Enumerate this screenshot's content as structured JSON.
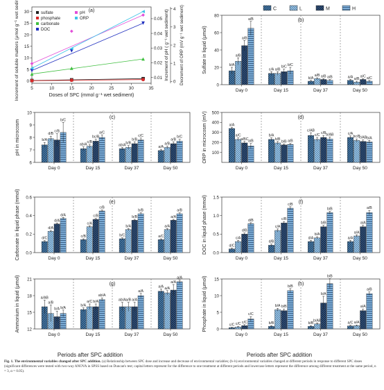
{
  "colors": {
    "C": "#4a7fae",
    "L": "#86b8dc",
    "M": "#1f3e6b",
    "H": "#5b93c7",
    "axis": "#333333",
    "label": "#222222"
  },
  "legend": {
    "labels": [
      "C",
      "L",
      "M",
      "H"
    ]
  },
  "shared": {
    "xticks": [
      "Day 0",
      "Day 15",
      "Day 37",
      "Day 50"
    ],
    "xlabel": "Periods after SPC addition"
  },
  "caption": {
    "lead": "Fig. 1.",
    "title": "The environmental variables changed after SPC addition.",
    "body": "(a) Relationship between SPC dose and increase and decrease of environmental variables; (b–h) environmental variables changed at different periods in response to different SPC doses (significant differences were tested with two-way ANOVA in SPSS based on Duncan's test; capital letters represent for the difference to one treatment at different periods and lowercase letters represent the difference among different treatment at the same period, n = 3, α = 0.05)."
  },
  "chart_data": [
    {
      "type": "scatter",
      "panel": "(a)",
      "xlabel": "Doses of SPC (mmol g⁻¹ wet sediment)",
      "ylabel": "Increment of soluble matters (μmol g⁻¹ wet sediment)",
      "ylabel_right1": "Increment of pH ( g⁻¹ wet sediment)",
      "ylabel_right2": "Decrement of ORP (mV g⁻¹ wet sediment)",
      "xticks": [
        "5",
        "10",
        "15",
        "20",
        "25",
        "30",
        "35"
      ],
      "yticks": [
        "0",
        "5",
        "10",
        "15",
        "20",
        "25",
        "30"
      ],
      "yticks_right1": [
        "0.01",
        "0.02",
        "0.03",
        "0.04",
        "0.05"
      ],
      "yticks_right2": [
        "0",
        "1",
        "2",
        "3",
        "4"
      ],
      "xlim": [
        5,
        35
      ],
      "ylim": [
        -1,
        32
      ],
      "series": [
        {
          "name": "sulfate",
          "color": "#222222",
          "marker": "square",
          "x": [
            5,
            15,
            33
          ],
          "y": [
            0.2,
            0.5,
            1.0
          ]
        },
        {
          "name": "phosphate",
          "color": "#d92a2a",
          "marker": "circle",
          "x": [
            5,
            15,
            33
          ],
          "y": [
            0.1,
            0.3,
            0.6
          ]
        },
        {
          "name": "carbonate",
          "color": "#3fbf3f",
          "marker": "triangle-up",
          "x": [
            5,
            15,
            33
          ],
          "y": [
            3.0,
            5.5,
            9.5
          ]
        },
        {
          "name": "DOC",
          "color": "#1f2fbf",
          "marker": "triangle-down",
          "x": [
            5,
            15,
            33
          ],
          "y": [
            4.5,
            13.0,
            25.0
          ]
        },
        {
          "name": "pH",
          "color": "#e24fd8",
          "marker": "diamond",
          "x": [
            5,
            15,
            33
          ],
          "y": [
            7.5,
            21.5,
            28.5
          ]
        },
        {
          "name": "ORP",
          "color": "#3ec3e8",
          "marker": "triangle-left",
          "x": [
            5,
            15,
            33
          ],
          "y": [
            5.5,
            14.0,
            30.0
          ]
        }
      ]
    },
    {
      "type": "bar",
      "panel": "(b)",
      "ylabel": "Sulfate in liquid (μmol)",
      "ylim": [
        0,
        80
      ],
      "yticks": [
        "0",
        "20",
        "40",
        "60",
        "80"
      ],
      "categories": [
        "Day 0",
        "Day 15",
        "Day 37",
        "Day 50"
      ],
      "series": [
        {
          "name": "C",
          "values": [
            16,
            13,
            4,
            5
          ]
        },
        {
          "name": "L",
          "values": [
            27,
            13,
            7,
            3
          ]
        },
        {
          "name": "M",
          "values": [
            45,
            15,
            6,
            6
          ]
        },
        {
          "name": "H",
          "values": [
            65,
            16,
            5,
            4
          ]
        }
      ],
      "errors": [
        [
          4,
          2,
          1,
          1
        ],
        [
          4,
          2,
          1,
          1
        ],
        [
          6,
          3,
          1,
          1
        ],
        [
          8,
          4,
          1,
          1
        ]
      ],
      "labels": [
        [
          "b/A",
          "c/A",
          "b/A",
          "a/A"
        ],
        [
          "a/B",
          "a/B",
          "a/B",
          "a/B"
        ],
        [
          "a/B",
          "b/C",
          "a/B",
          "a/C"
        ],
        [
          "a/B",
          "b/C",
          "a/B",
          "a/C"
        ]
      ]
    },
    {
      "type": "bar",
      "panel": "(c)",
      "ylabel": "pH in microcosm",
      "ylim": [
        6,
        10
      ],
      "yticks": [
        "6",
        "7",
        "8",
        "9",
        "10"
      ],
      "categories": [
        "Day 0",
        "Day 15",
        "Day 37",
        "Day 50"
      ],
      "series": [
        {
          "name": "C",
          "values": [
            7.4,
            7.1,
            7.1,
            6.95
          ]
        },
        {
          "name": "L",
          "values": [
            7.9,
            7.3,
            7.2,
            7.2
          ]
        },
        {
          "name": "M",
          "values": [
            7.8,
            7.7,
            7.5,
            7.5
          ]
        },
        {
          "name": "H",
          "values": [
            8.4,
            8.0,
            7.8,
            7.7
          ]
        }
      ],
      "errors": [
        [
          0.2,
          0.15,
          0.1,
          0.1
        ],
        [
          0.2,
          0.15,
          0.15,
          0.1
        ],
        [
          0.5,
          0.15,
          0.15,
          0.15
        ],
        [
          0.8,
          0.2,
          0.15,
          0.15
        ]
      ],
      "labels": [
        [
          "b/A",
          "ab/A",
          "ab/A",
          "a/A"
        ],
        [
          "d/B",
          "c/B",
          "b/B",
          "a/B"
        ],
        [
          "c/B",
          "bc/B",
          "b/B",
          "a/B"
        ],
        [
          "b/C",
          "a/C",
          "c/C",
          "b/C"
        ]
      ]
    },
    {
      "type": "bar",
      "panel": "(d)",
      "ylabel": "ORP in microcosm (mV)",
      "ylim": [
        0,
        500
      ],
      "yticks": [
        "100",
        "200",
        "300",
        "400",
        "500"
      ],
      "categories": [
        "Day 0",
        "Day 15",
        "Day 37",
        "Day 50"
      ],
      "series": [
        {
          "name": "C",
          "values": [
            340,
            230,
            270,
            250
          ]
        },
        {
          "name": "L",
          "values": [
            230,
            195,
            230,
            220
          ]
        },
        {
          "name": "M",
          "values": [
            195,
            175,
            250,
            210
          ]
        },
        {
          "name": "H",
          "values": [
            165,
            180,
            235,
            205
          ]
        }
      ],
      "errors": [
        [
          10,
          15,
          25,
          15
        ],
        [
          15,
          15,
          20,
          15
        ],
        [
          15,
          10,
          20,
          15
        ],
        [
          25,
          10,
          20,
          15
        ]
      ],
      "labels": [
        [
          "a/A",
          "b/A",
          "c/AB",
          "c/A"
        ],
        [
          "a/C",
          "b/B",
          "c/C",
          "bc/B"
        ],
        [
          "a/BC",
          "b/B",
          "c/B",
          "c/AB"
        ],
        [
          "a/B",
          "a/B",
          "b/AB",
          "b/A"
        ]
      ]
    },
    {
      "type": "bar",
      "panel": "(e)",
      "ylabel": "Carbonate in liquid phase (mmol)",
      "ylim": [
        0,
        0.6
      ],
      "yticks": [
        "0.0",
        "0.2",
        "0.4",
        "0.6"
      ],
      "categories": [
        "Day 0",
        "Day 15",
        "Day 37",
        "Day 50"
      ],
      "series": [
        {
          "name": "C",
          "values": [
            0.12,
            0.14,
            0.15,
            0.14
          ]
        },
        {
          "name": "L",
          "values": [
            0.23,
            0.28,
            0.25,
            0.25
          ]
        },
        {
          "name": "M",
          "values": [
            0.31,
            0.36,
            0.35,
            0.35
          ]
        },
        {
          "name": "H",
          "values": [
            0.37,
            0.45,
            0.42,
            0.42
          ]
        }
      ],
      "errors": [
        [
          0.01,
          0.01,
          0.01,
          0.01
        ],
        [
          0.01,
          0.01,
          0.01,
          0.01
        ],
        [
          0.01,
          0.01,
          0.01,
          0.01
        ],
        [
          0.01,
          0.01,
          0.01,
          0.01
        ]
      ],
      "labels": [
        [
          "d/C",
          "c/B",
          "b/C",
          "a/C"
        ],
        [
          "d/A",
          "c/A",
          "b/A",
          "a/A"
        ],
        [
          "d/A",
          "c/B",
          "b/B",
          "a/A"
        ],
        [
          "d/A",
          "c/B",
          "b/B",
          "a/B"
        ]
      ]
    },
    {
      "type": "bar",
      "panel": "(f)",
      "ylabel": "DOC in liquid phase (mmol)",
      "ylim": [
        0,
        1.5
      ],
      "yticks": [
        "0.0",
        "0.5",
        "1.0",
        "1.5"
      ],
      "categories": [
        "Day 0",
        "Day 15",
        "Day 37",
        "Day 50"
      ],
      "series": [
        {
          "name": "C",
          "values": [
            0.1,
            0.2,
            0.3,
            0.3
          ]
        },
        {
          "name": "L",
          "values": [
            0.3,
            0.6,
            0.4,
            0.45
          ]
        },
        {
          "name": "M",
          "values": [
            0.5,
            0.8,
            0.7,
            0.7
          ]
        },
        {
          "name": "H",
          "values": [
            0.78,
            1.2,
            1.08,
            1.08
          ]
        }
      ],
      "errors": [
        [
          0.02,
          0.03,
          0.03,
          0.03
        ],
        [
          0.03,
          0.04,
          0.03,
          0.03
        ],
        [
          0.03,
          0.04,
          0.04,
          0.04
        ],
        [
          0.03,
          0.04,
          0.04,
          0.06
        ]
      ],
      "labels": [
        [
          "d/C",
          "d/B",
          "d/A",
          "a/A"
        ],
        [
          "c/A",
          "c/A",
          "b/A",
          "a/A"
        ],
        [
          "d/B",
          "c/B",
          "b/B",
          "a/A"
        ],
        [
          "d/B",
          "c/B",
          "b/B",
          "a/B"
        ]
      ]
    },
    {
      "type": "bar",
      "panel": "(g)",
      "ylabel": "Ammonium in liquid (μmol)",
      "ylim": [
        12,
        21
      ],
      "yticks": [
        "12",
        "15",
        "18",
        "21"
      ],
      "categories": [
        "Day 0",
        "Day 15",
        "Day 37",
        "Day 50"
      ],
      "series": [
        {
          "name": "C",
          "values": [
            16,
            15.5,
            16,
            18.8
          ]
        },
        {
          "name": "L",
          "values": [
            14.8,
            16.0,
            16.0,
            18.5
          ]
        },
        {
          "name": "M",
          "values": [
            14.2,
            16.0,
            16.0,
            19.0
          ]
        },
        {
          "name": "H",
          "values": [
            14.8,
            17.3,
            18.0,
            20.5
          ]
        }
      ],
      "errors": [
        [
          1.2,
          0.3,
          0.8,
          0.4
        ],
        [
          1.5,
          0.5,
          0.8,
          0.4
        ],
        [
          1.0,
          0.5,
          0.8,
          1.0
        ],
        [
          0.6,
          0.3,
          0.4,
          0.3
        ]
      ],
      "labels": [
        [
          "a/AB",
          "b/A",
          "ab/A",
          "a/A"
        ],
        [
          "a/B",
          "a/C",
          "a/B",
          "a/A"
        ],
        [
          "b/A",
          "b/A",
          "a/A",
          "a/A"
        ],
        [
          "b/A",
          "ab/A",
          "a/A",
          "a/A"
        ]
      ]
    },
    {
      "type": "bar",
      "panel": "(h)",
      "ylabel": "Phosphate in liquid (μmol)",
      "ylim": [
        0,
        15
      ],
      "yticks": [
        "0",
        "5",
        "10",
        "15"
      ],
      "categories": [
        "Day 0",
        "Day 15",
        "Day 37",
        "Day 50"
      ],
      "series": [
        {
          "name": "C",
          "values": [
            0.4,
            0.8,
            0.8,
            0.9
          ]
        },
        {
          "name": "L",
          "values": [
            0.6,
            5.8,
            1.5,
            1.0
          ]
        },
        {
          "name": "M",
          "values": [
            1.0,
            5.5,
            7.8,
            5.5
          ]
        },
        {
          "name": "H",
          "values": [
            3.0,
            11.5,
            13.6,
            10.6
          ]
        }
      ],
      "errors": [
        [
          0.1,
          0.2,
          0.2,
          0.2
        ],
        [
          0.2,
          0.4,
          0.3,
          0.2
        ],
        [
          0.3,
          0.5,
          2.0,
          0.5
        ],
        [
          0.7,
          0.6,
          1.5,
          0.5
        ]
      ],
      "labels": [
        [
          "c/C",
          "b/B",
          "b/B",
          "a/C"
        ],
        [
          "c/C",
          "b/A",
          "b/AB",
          "a/A"
        ],
        [
          "c/C",
          "b/B",
          "b/A",
          "a/A"
        ],
        [
          "c/C",
          "b/B",
          "b/B",
          "a/B"
        ]
      ]
    }
  ]
}
